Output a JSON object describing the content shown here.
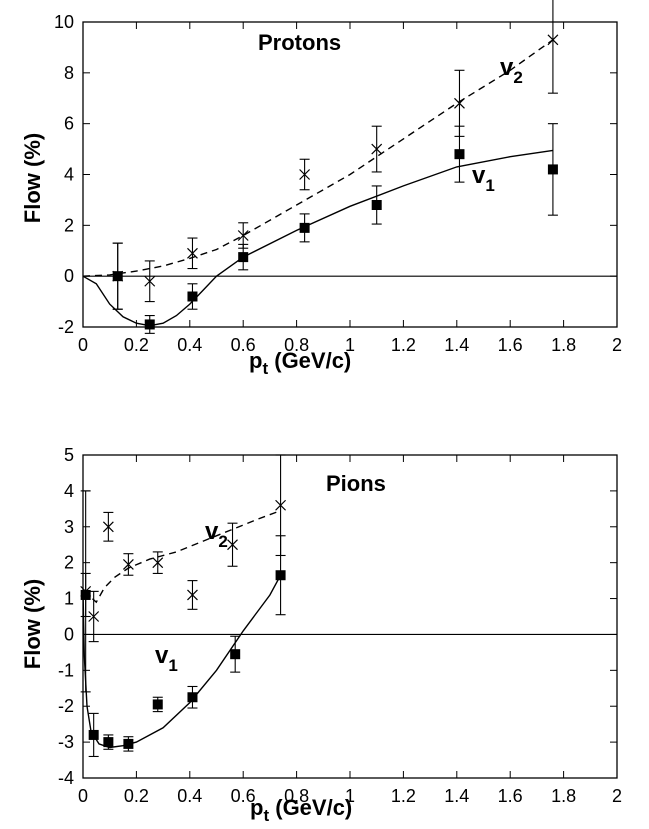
{
  "chart_data": [
    {
      "type": "scatter",
      "annotation": "Protons",
      "xlabel": {
        "main": "p",
        "sub": "t",
        "rest": " (GeV/c)"
      },
      "ylabel": "Flow (%)",
      "xlim": [
        0,
        2
      ],
      "ylim": [
        -2,
        10
      ],
      "xticks": [
        "0",
        "0.2",
        "0.4",
        "0.6",
        "0.8",
        "1",
        "1.2",
        "1.4",
        "1.6",
        "1.8",
        "2"
      ],
      "yticks": [
        "-2",
        "0",
        "2",
        "4",
        "6",
        "8",
        "10"
      ],
      "zero_line": true,
      "grid": false,
      "series": [
        {
          "name": "v2",
          "label_main": "v",
          "label_sub": "2",
          "marker": "cross",
          "points": [
            {
              "x": 0.13,
              "y": 0.0,
              "err": 1.3
            },
            {
              "x": 0.25,
              "y": -0.2,
              "err": 0.8
            },
            {
              "x": 0.41,
              "y": 0.9,
              "err": 0.6
            },
            {
              "x": 0.6,
              "y": 1.6,
              "err": 0.5
            },
            {
              "x": 0.83,
              "y": 4.0,
              "err": 0.6
            },
            {
              "x": 1.1,
              "y": 5.0,
              "err": 0.9
            },
            {
              "x": 1.41,
              "y": 6.8,
              "err": 1.3
            },
            {
              "x": 1.76,
              "y": 9.3,
              "err": 2.1
            }
          ],
          "curve": {
            "style": "dashed",
            "x": [
              0.0,
              0.1,
              0.2,
              0.3,
              0.4,
              0.5,
              0.6,
              0.8,
              1.0,
              1.2,
              1.4,
              1.6,
              1.76
            ],
            "y": [
              0.0,
              0.05,
              0.2,
              0.4,
              0.7,
              1.05,
              1.6,
              2.8,
              4.0,
              5.4,
              6.8,
              8.1,
              9.3
            ]
          }
        },
        {
          "name": "v1",
          "label_main": "v",
          "label_sub": "1",
          "marker": "square",
          "points": [
            {
              "x": 0.13,
              "y": 0.0,
              "err": 1.3
            },
            {
              "x": 0.25,
              "y": -1.9,
              "err": 0.35
            },
            {
              "x": 0.41,
              "y": -0.8,
              "err": 0.5
            },
            {
              "x": 0.6,
              "y": 0.75,
              "err": 0.5
            },
            {
              "x": 0.83,
              "y": 1.9,
              "err": 0.55
            },
            {
              "x": 1.1,
              "y": 2.8,
              "err": 0.75
            },
            {
              "x": 1.41,
              "y": 4.8,
              "err": 1.1
            },
            {
              "x": 1.76,
              "y": 4.2,
              "err": 1.8
            }
          ],
          "curve": {
            "style": "solid",
            "x": [
              0.0,
              0.05,
              0.1,
              0.15,
              0.2,
              0.25,
              0.3,
              0.35,
              0.4,
              0.45,
              0.5,
              0.6,
              0.8,
              1.0,
              1.2,
              1.4,
              1.6,
              1.76
            ],
            "y": [
              0.0,
              -0.3,
              -1.1,
              -1.6,
              -1.85,
              -1.95,
              -1.85,
              -1.55,
              -1.1,
              -0.55,
              0.0,
              0.75,
              1.8,
              2.75,
              3.55,
              4.3,
              4.7,
              4.95
            ]
          }
        }
      ]
    },
    {
      "type": "scatter",
      "annotation": "Pions",
      "xlabel": {
        "main": "p",
        "sub": "t",
        "rest": " (GeV/c)"
      },
      "ylabel": "Flow (%)",
      "xlim": [
        0,
        2
      ],
      "ylim": [
        -4,
        5
      ],
      "xticks": [
        "0",
        "0.2",
        "0.4",
        "0.6",
        "0.8",
        "1",
        "1.2",
        "1.4",
        "1.6",
        "1.8",
        "2"
      ],
      "yticks": [
        "-4",
        "-3",
        "-2",
        "-1",
        "0",
        "1",
        "2",
        "3",
        "4",
        "5"
      ],
      "zero_line": true,
      "grid": false,
      "series": [
        {
          "name": "v2",
          "label_main": "v",
          "label_sub": "2",
          "marker": "cross",
          "points": [
            {
              "x": 0.01,
              "y": 1.2,
              "err": 2.8
            },
            {
              "x": 0.04,
              "y": 0.5,
              "err": 0.7
            },
            {
              "x": 0.095,
              "y": 3.0,
              "err": 0.4
            },
            {
              "x": 0.17,
              "y": 1.95,
              "err": 0.3
            },
            {
              "x": 0.28,
              "y": 2.0,
              "err": 0.3
            },
            {
              "x": 0.41,
              "y": 1.1,
              "err": 0.4
            },
            {
              "x": 0.56,
              "y": 2.5,
              "err": 0.6
            },
            {
              "x": 0.74,
              "y": 3.6,
              "err": 1.4
            }
          ],
          "curve": {
            "style": "dashed",
            "x": [
              0.0,
              0.02,
              0.05,
              0.08,
              0.12,
              0.17,
              0.25,
              0.35,
              0.45,
              0.55,
              0.65,
              0.74
            ],
            "y": [
              1.2,
              1.1,
              0.9,
              1.3,
              1.6,
              1.85,
              2.1,
              2.3,
              2.6,
              2.9,
              3.2,
              3.45
            ]
          }
        },
        {
          "name": "v1",
          "label_main": "v",
          "label_sub": "1",
          "marker": "square",
          "points": [
            {
              "x": 0.01,
              "y": 1.1,
              "err": 0.6
            },
            {
              "x": 0.04,
              "y": -2.8,
              "err": 0.6
            },
            {
              "x": 0.095,
              "y": -3.0,
              "err": 0.2
            },
            {
              "x": 0.17,
              "y": -3.05,
              "err": 0.2
            },
            {
              "x": 0.28,
              "y": -1.95,
              "err": 0.2
            },
            {
              "x": 0.41,
              "y": -1.75,
              "err": 0.3
            },
            {
              "x": 0.57,
              "y": -0.55,
              "err": 0.5
            },
            {
              "x": 0.74,
              "y": 1.65,
              "err": 1.1
            }
          ],
          "curve": {
            "style": "solid",
            "x": [
              0.0,
              0.005,
              0.015,
              0.03,
              0.06,
              0.1,
              0.15,
              0.2,
              0.3,
              0.4,
              0.5,
              0.6,
              0.7,
              0.74
            ],
            "y": [
              1.2,
              -0.6,
              -2.0,
              -2.7,
              -3.05,
              -3.15,
              -3.1,
              -3.0,
              -2.6,
              -1.9,
              -1.0,
              0.1,
              1.1,
              1.65
            ]
          }
        }
      ]
    }
  ]
}
